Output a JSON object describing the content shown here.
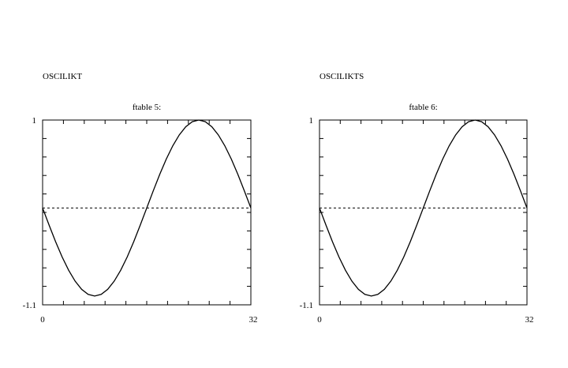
{
  "chart_data": [
    {
      "type": "line",
      "heading": "OSCILIKT",
      "title": "ftable 5:",
      "xlabel": "",
      "ylabel": "",
      "xlim": [
        0,
        32
      ],
      "ylim": [
        -1.1,
        1
      ],
      "x_tick_labels": [
        "0",
        "32"
      ],
      "y_tick_labels": [
        "1",
        "-1.1"
      ],
      "reference_line": {
        "y": 0,
        "style": "dashed"
      },
      "grid": false,
      "series": [
        {
          "x": [
            0,
            1,
            2,
            3,
            4,
            5,
            6,
            7,
            8,
            9,
            10,
            11,
            12,
            13,
            14,
            15,
            16,
            17,
            18,
            19,
            20,
            21,
            22,
            23,
            24,
            25,
            26,
            27,
            28,
            29,
            30,
            31,
            32
          ],
          "values": [
            0,
            -0.195,
            -0.383,
            -0.556,
            -0.707,
            -0.831,
            -0.924,
            -0.981,
            -1.0,
            -0.981,
            -0.924,
            -0.831,
            -0.707,
            -0.556,
            -0.383,
            -0.195,
            0,
            0.195,
            0.383,
            0.556,
            0.707,
            0.831,
            0.924,
            0.981,
            1.0,
            0.981,
            0.924,
            0.831,
            0.707,
            0.556,
            0.383,
            0.195,
            0
          ]
        }
      ]
    },
    {
      "type": "line",
      "heading": "OSCILIKTS",
      "title": "ftable 6:",
      "xlabel": "",
      "ylabel": "",
      "xlim": [
        0,
        32
      ],
      "ylim": [
        -1.1,
        1
      ],
      "x_tick_labels": [
        "0",
        "32"
      ],
      "y_tick_labels": [
        "1",
        "-1.1"
      ],
      "reference_line": {
        "y": 0,
        "style": "dashed"
      },
      "grid": false,
      "series": [
        {
          "x": [
            0,
            1,
            2,
            3,
            4,
            5,
            6,
            7,
            8,
            9,
            10,
            11,
            12,
            13,
            14,
            15,
            16,
            17,
            18,
            19,
            20,
            21,
            22,
            23,
            24,
            25,
            26,
            27,
            28,
            29,
            30,
            31,
            32
          ],
          "values": [
            0,
            -0.195,
            -0.383,
            -0.556,
            -0.707,
            -0.831,
            -0.924,
            -0.981,
            -1.0,
            -0.981,
            -0.924,
            -0.831,
            -0.707,
            -0.556,
            -0.383,
            -0.195,
            0,
            0.195,
            0.383,
            0.556,
            0.707,
            0.831,
            0.924,
            0.981,
            1.0,
            0.981,
            0.924,
            0.831,
            0.707,
            0.556,
            0.383,
            0.195,
            0
          ]
        }
      ]
    }
  ]
}
